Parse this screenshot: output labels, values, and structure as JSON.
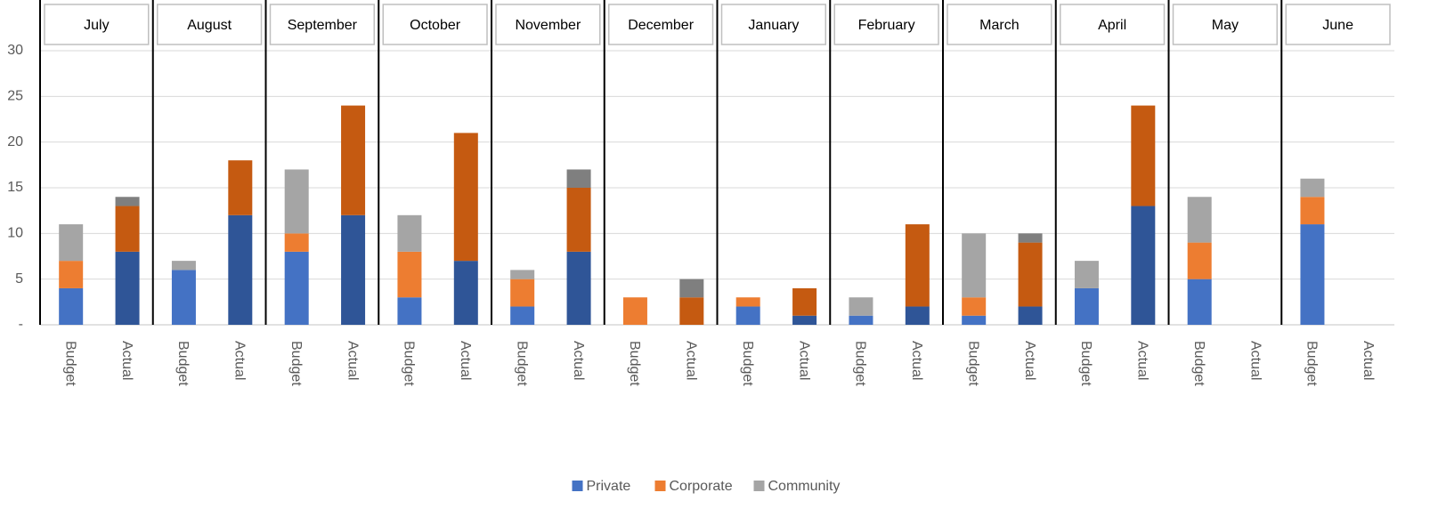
{
  "chart_data": {
    "type": "stacked_bar",
    "groups": [
      "July",
      "August",
      "September",
      "October",
      "November",
      "December",
      "January",
      "February",
      "March",
      "April",
      "May",
      "June"
    ],
    "categories": [
      "Budget",
      "Actual",
      "Budget",
      "Actual",
      "Budget",
      "Actual",
      "Budget",
      "Actual",
      "Budget",
      "Actual",
      "Budget",
      "Actual",
      "Budget",
      "Actual",
      "Budget",
      "Actual",
      "Budget",
      "Actual",
      "Budget",
      "Actual",
      "Budget",
      "Actual",
      "Budget",
      "Actual"
    ],
    "series": [
      {
        "name": "Private",
        "color": "#4472c4",
        "actual_color": "#2f5597",
        "values": [
          4,
          8,
          6,
          12,
          8,
          12,
          3,
          7,
          2,
          8,
          0,
          0,
          2,
          1,
          1,
          2,
          1,
          2,
          4,
          13,
          5,
          0,
          11,
          0
        ]
      },
      {
        "name": "Corporate",
        "color": "#ed7d31",
        "actual_color": "#c55a11",
        "values": [
          3,
          5,
          0,
          6,
          2,
          12,
          5,
          14,
          3,
          7,
          3,
          3,
          1,
          3,
          0,
          9,
          2,
          7,
          0,
          11,
          4,
          0,
          3,
          0
        ]
      },
      {
        "name": "Community",
        "color": "#a5a5a5",
        "actual_color": "#7f7f7f",
        "values": [
          4,
          1,
          1,
          0,
          7,
          0,
          4,
          0,
          1,
          2,
          0,
          2,
          0,
          0,
          2,
          0,
          7,
          1,
          3,
          0,
          5,
          0,
          2,
          0
        ]
      }
    ],
    "ylim": [
      0,
      30
    ],
    "yticks": [
      {
        "value": 0,
        "label": "-"
      },
      5,
      10,
      15,
      20,
      25,
      30
    ],
    "grid": true,
    "legend": "bottom"
  }
}
